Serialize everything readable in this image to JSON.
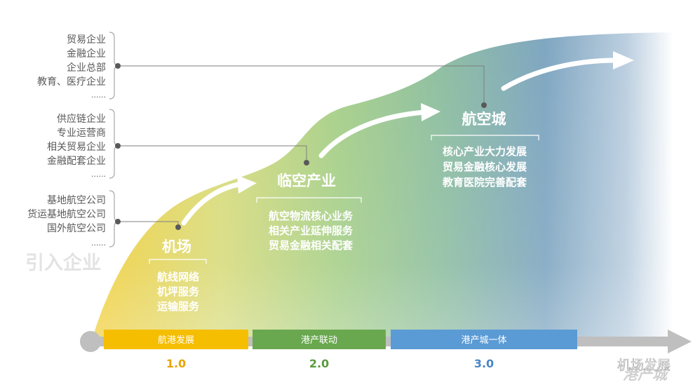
{
  "groups": [
    {
      "items": [
        "贸易企业",
        "金融企业",
        "企业总部",
        "教育、医疗企业"
      ],
      "ellipsis": "......"
    },
    {
      "items": [
        "供应链企业",
        "专业运营商",
        "相关贸易企业",
        "金融配套企业"
      ],
      "ellipsis": "......"
    },
    {
      "items": [
        "基地航空公司",
        "货运基地航空公司",
        "国外航空公司"
      ],
      "ellipsis": "......"
    }
  ],
  "intro_label": "引入企业",
  "stages": [
    {
      "title": "机场",
      "lines": [
        "航线网络",
        "机坪服务",
        "运输服务"
      ],
      "bar_label": "航港发展",
      "version": "1.0",
      "color": "#f6be00"
    },
    {
      "title": "临空产业",
      "lines": [
        "航空物流核心业务",
        "相关产业延伸服务",
        "贸易金融相关配套"
      ],
      "bar_label": "港产联动",
      "version": "2.0",
      "color": "#6aa84f"
    },
    {
      "title": "航空城",
      "lines": [
        "核心产业大力发展",
        "贸易金融核心发展",
        "教育医院完善配套"
      ],
      "bar_label": "港产城一体",
      "version": "3.0",
      "color": "#5b9bd5"
    }
  ],
  "watermark": {
    "wechat": "机场发展",
    "shadow": "港产城"
  }
}
